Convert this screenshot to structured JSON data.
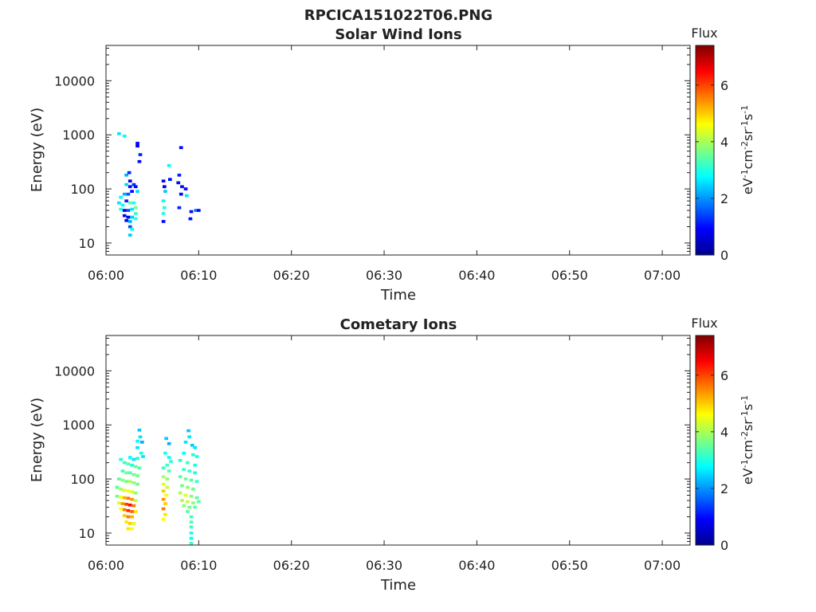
{
  "figure_title": "RPCICA151022T06.PNG",
  "colorbar_scale": [
    "#00008f",
    "#0000ff",
    "#0080ff",
    "#00ffff",
    "#80ff80",
    "#ffff00",
    "#ff8000",
    "#ff0000",
    "#800000"
  ],
  "chart_data": [
    {
      "type": "heatmap",
      "title": "Solar Wind Ions",
      "xlabel": "Time",
      "ylabel": "Energy (eV)",
      "x_ticks": [
        "06:00",
        "06:10",
        "06:20",
        "06:30",
        "06:40",
        "06:50",
        "07:00"
      ],
      "x_range_minutes": [
        0,
        63
      ],
      "y_scale": "log",
      "y_ticks": [
        "10",
        "100",
        "1000",
        "10000"
      ],
      "y_range": [
        6,
        45000
      ],
      "grid": false,
      "colorbar": {
        "title": "Flux",
        "label": "eV-1cm-2sr-1s-1",
        "ticks": [
          "0",
          "2",
          "4",
          "6"
        ],
        "range": [
          0,
          7.4
        ]
      },
      "points": [
        [
          1.4,
          1050,
          2.6
        ],
        [
          2.0,
          950,
          2.8
        ],
        [
          3.4,
          700,
          1.0
        ],
        [
          3.4,
          620,
          0.8
        ],
        [
          3.7,
          430,
          1.2
        ],
        [
          3.6,
          320,
          1.0
        ],
        [
          2.2,
          180,
          2.2
        ],
        [
          2.5,
          200,
          1.2
        ],
        [
          2.6,
          140,
          0.8
        ],
        [
          2.6,
          110,
          1.0
        ],
        [
          2.2,
          120,
          2.5
        ],
        [
          3.0,
          120,
          1.2
        ],
        [
          3.2,
          110,
          0.9
        ],
        [
          3.4,
          90,
          2.5
        ],
        [
          1.6,
          70,
          2.8
        ],
        [
          2.0,
          80,
          2.2
        ],
        [
          2.4,
          80,
          1.6
        ],
        [
          2.8,
          90,
          1.0
        ],
        [
          1.4,
          55,
          2.6
        ],
        [
          1.8,
          50,
          2.9
        ],
        [
          2.2,
          60,
          1.2
        ],
        [
          2.6,
          55,
          3.4
        ],
        [
          3.0,
          55,
          3.0
        ],
        [
          3.2,
          45,
          3.6
        ],
        [
          1.6,
          42,
          3.0
        ],
        [
          2.0,
          40,
          0.8
        ],
        [
          2.4,
          40,
          1.5
        ],
        [
          2.8,
          42,
          2.6
        ],
        [
          3.2,
          35,
          3.2
        ],
        [
          2.0,
          32,
          1.0
        ],
        [
          2.4,
          30,
          0.7
        ],
        [
          2.8,
          30,
          2.4
        ],
        [
          3.2,
          28,
          3.0
        ],
        [
          2.2,
          26,
          1.0
        ],
        [
          2.6,
          25,
          2.2
        ],
        [
          2.6,
          20,
          1.5
        ],
        [
          2.8,
          18,
          2.8
        ],
        [
          2.6,
          14,
          2.4
        ],
        [
          6.2,
          140,
          1.0
        ],
        [
          6.3,
          110,
          0.8
        ],
        [
          6.4,
          90,
          2.4
        ],
        [
          6.2,
          60,
          2.8
        ],
        [
          6.3,
          45,
          3.0
        ],
        [
          6.2,
          35,
          3.0
        ],
        [
          6.2,
          25,
          1.0
        ],
        [
          6.8,
          270,
          2.8
        ],
        [
          6.9,
          150,
          1.0
        ],
        [
          8.1,
          580,
          1.0
        ],
        [
          7.9,
          180,
          1.2
        ],
        [
          7.8,
          130,
          1.0
        ],
        [
          8.2,
          110,
          1.0
        ],
        [
          8.6,
          100,
          1.0
        ],
        [
          8.1,
          80,
          1.0
        ],
        [
          8.7,
          75,
          2.6
        ],
        [
          7.9,
          45,
          1.2
        ],
        [
          9.2,
          38,
          1.0
        ],
        [
          9.7,
          40,
          1.8
        ],
        [
          10.0,
          40,
          1.0
        ],
        [
          9.1,
          28,
          1.0
        ]
      ]
    },
    {
      "type": "heatmap",
      "title": "Cometary Ions",
      "xlabel": "Time",
      "ylabel": "Energy (eV)",
      "x_ticks": [
        "06:00",
        "06:10",
        "06:20",
        "06:30",
        "06:40",
        "06:50",
        "07:00"
      ],
      "x_range_minutes": [
        0,
        63
      ],
      "y_scale": "log",
      "y_ticks": [
        "10",
        "100",
        "1000",
        "10000"
      ],
      "y_range": [
        6,
        45000
      ],
      "grid": false,
      "colorbar": {
        "title": "Flux",
        "label": "eV-1cm-2sr-1s-1",
        "ticks": [
          "0",
          "2",
          "4",
          "6"
        ],
        "range": [
          0,
          7.4
        ]
      },
      "points": [
        [
          3.6,
          800,
          2.4
        ],
        [
          3.7,
          600,
          2.6
        ],
        [
          3.4,
          500,
          2.8
        ],
        [
          3.9,
          480,
          2.2
        ],
        [
          3.4,
          380,
          2.6
        ],
        [
          3.8,
          300,
          3.0
        ],
        [
          4.0,
          260,
          2.6
        ],
        [
          2.6,
          250,
          2.8
        ],
        [
          3.0,
          230,
          2.6
        ],
        [
          3.4,
          240,
          3.0
        ],
        [
          1.6,
          230,
          3.0
        ],
        [
          2.0,
          200,
          3.2
        ],
        [
          2.4,
          190,
          3.4
        ],
        [
          2.8,
          180,
          3.0
        ],
        [
          3.2,
          170,
          3.5
        ],
        [
          3.6,
          160,
          3.4
        ],
        [
          1.8,
          140,
          3.2
        ],
        [
          2.2,
          130,
          3.6
        ],
        [
          2.6,
          130,
          3.4
        ],
        [
          3.0,
          120,
          3.6
        ],
        [
          3.4,
          115,
          3.6
        ],
        [
          1.4,
          100,
          3.4
        ],
        [
          1.8,
          95,
          3.8
        ],
        [
          2.2,
          90,
          3.6
        ],
        [
          2.6,
          90,
          4.0
        ],
        [
          3.0,
          85,
          3.8
        ],
        [
          3.4,
          80,
          3.6
        ],
        [
          1.2,
          70,
          3.4
        ],
        [
          1.6,
          65,
          4.0
        ],
        [
          2.0,
          62,
          4.4
        ],
        [
          2.4,
          60,
          4.6
        ],
        [
          2.8,
          58,
          4.4
        ],
        [
          3.2,
          55,
          3.8
        ],
        [
          1.2,
          48,
          3.6
        ],
        [
          1.6,
          46,
          4.6
        ],
        [
          2.0,
          45,
          5.2
        ],
        [
          2.4,
          44,
          5.6
        ],
        [
          2.8,
          42,
          5.4
        ],
        [
          3.2,
          40,
          4.2
        ],
        [
          1.4,
          36,
          4.4
        ],
        [
          1.8,
          35,
          5.4
        ],
        [
          2.2,
          34,
          6.0
        ],
        [
          2.6,
          33,
          6.4
        ],
        [
          3.0,
          32,
          5.6
        ],
        [
          1.6,
          28,
          4.6
        ],
        [
          2.0,
          27,
          5.6
        ],
        [
          2.4,
          26,
          6.2
        ],
        [
          2.8,
          25,
          5.8
        ],
        [
          3.2,
          25,
          4.8
        ],
        [
          2.0,
          21,
          5.0
        ],
        [
          2.4,
          20,
          5.6
        ],
        [
          2.8,
          20,
          5.2
        ],
        [
          2.2,
          16,
          4.8
        ],
        [
          2.6,
          15,
          5.0
        ],
        [
          3.0,
          15,
          4.4
        ],
        [
          2.4,
          12,
          4.8
        ],
        [
          2.8,
          12,
          4.6
        ],
        [
          6.5,
          560,
          2.4
        ],
        [
          6.8,
          450,
          2.2
        ],
        [
          6.4,
          300,
          3.0
        ],
        [
          6.8,
          250,
          2.8
        ],
        [
          7.0,
          210,
          3.2
        ],
        [
          6.6,
          180,
          3.2
        ],
        [
          6.2,
          160,
          3.2
        ],
        [
          6.8,
          140,
          3.4
        ],
        [
          6.2,
          110,
          4.0
        ],
        [
          6.6,
          100,
          3.8
        ],
        [
          6.2,
          80,
          4.4
        ],
        [
          6.6,
          70,
          4.2
        ],
        [
          6.2,
          60,
          5.0
        ],
        [
          6.5,
          50,
          4.6
        ],
        [
          6.2,
          42,
          5.4
        ],
        [
          6.4,
          35,
          5.0
        ],
        [
          6.2,
          28,
          5.6
        ],
        [
          6.4,
          22,
          4.8
        ],
        [
          6.2,
          18,
          4.6
        ],
        [
          8.9,
          780,
          2.4
        ],
        [
          9.0,
          600,
          2.6
        ],
        [
          8.6,
          480,
          2.6
        ],
        [
          9.3,
          420,
          2.4
        ],
        [
          9.6,
          380,
          2.6
        ],
        [
          8.4,
          300,
          2.8
        ],
        [
          9.4,
          280,
          3.0
        ],
        [
          9.8,
          260,
          3.0
        ],
        [
          8.0,
          220,
          3.0
        ],
        [
          8.8,
          200,
          3.2
        ],
        [
          9.6,
          180,
          3.0
        ],
        [
          8.4,
          150,
          3.2
        ],
        [
          9.0,
          140,
          3.2
        ],
        [
          9.6,
          130,
          3.0
        ],
        [
          8.0,
          110,
          3.4
        ],
        [
          8.6,
          100,
          3.6
        ],
        [
          9.2,
          95,
          3.4
        ],
        [
          9.8,
          90,
          3.2
        ],
        [
          8.2,
          75,
          3.6
        ],
        [
          8.8,
          70,
          3.8
        ],
        [
          9.4,
          65,
          3.6
        ],
        [
          8.0,
          55,
          4.0
        ],
        [
          8.6,
          50,
          4.4
        ],
        [
          9.2,
          48,
          3.8
        ],
        [
          9.8,
          45,
          3.4
        ],
        [
          8.2,
          40,
          4.0
        ],
        [
          8.8,
          38,
          4.2
        ],
        [
          9.4,
          36,
          3.8
        ],
        [
          10.0,
          38,
          3.4
        ],
        [
          8.4,
          32,
          3.8
        ],
        [
          9.0,
          30,
          3.6
        ],
        [
          9.6,
          30,
          3.4
        ],
        [
          8.8,
          25,
          3.4
        ],
        [
          9.2,
          20,
          3.2
        ],
        [
          9.2,
          16,
          3.4
        ],
        [
          9.2,
          13,
          3.2
        ],
        [
          9.2,
          10,
          3.0
        ],
        [
          9.2,
          8,
          2.8
        ],
        [
          9.2,
          6.5,
          3.2
        ]
      ]
    }
  ]
}
